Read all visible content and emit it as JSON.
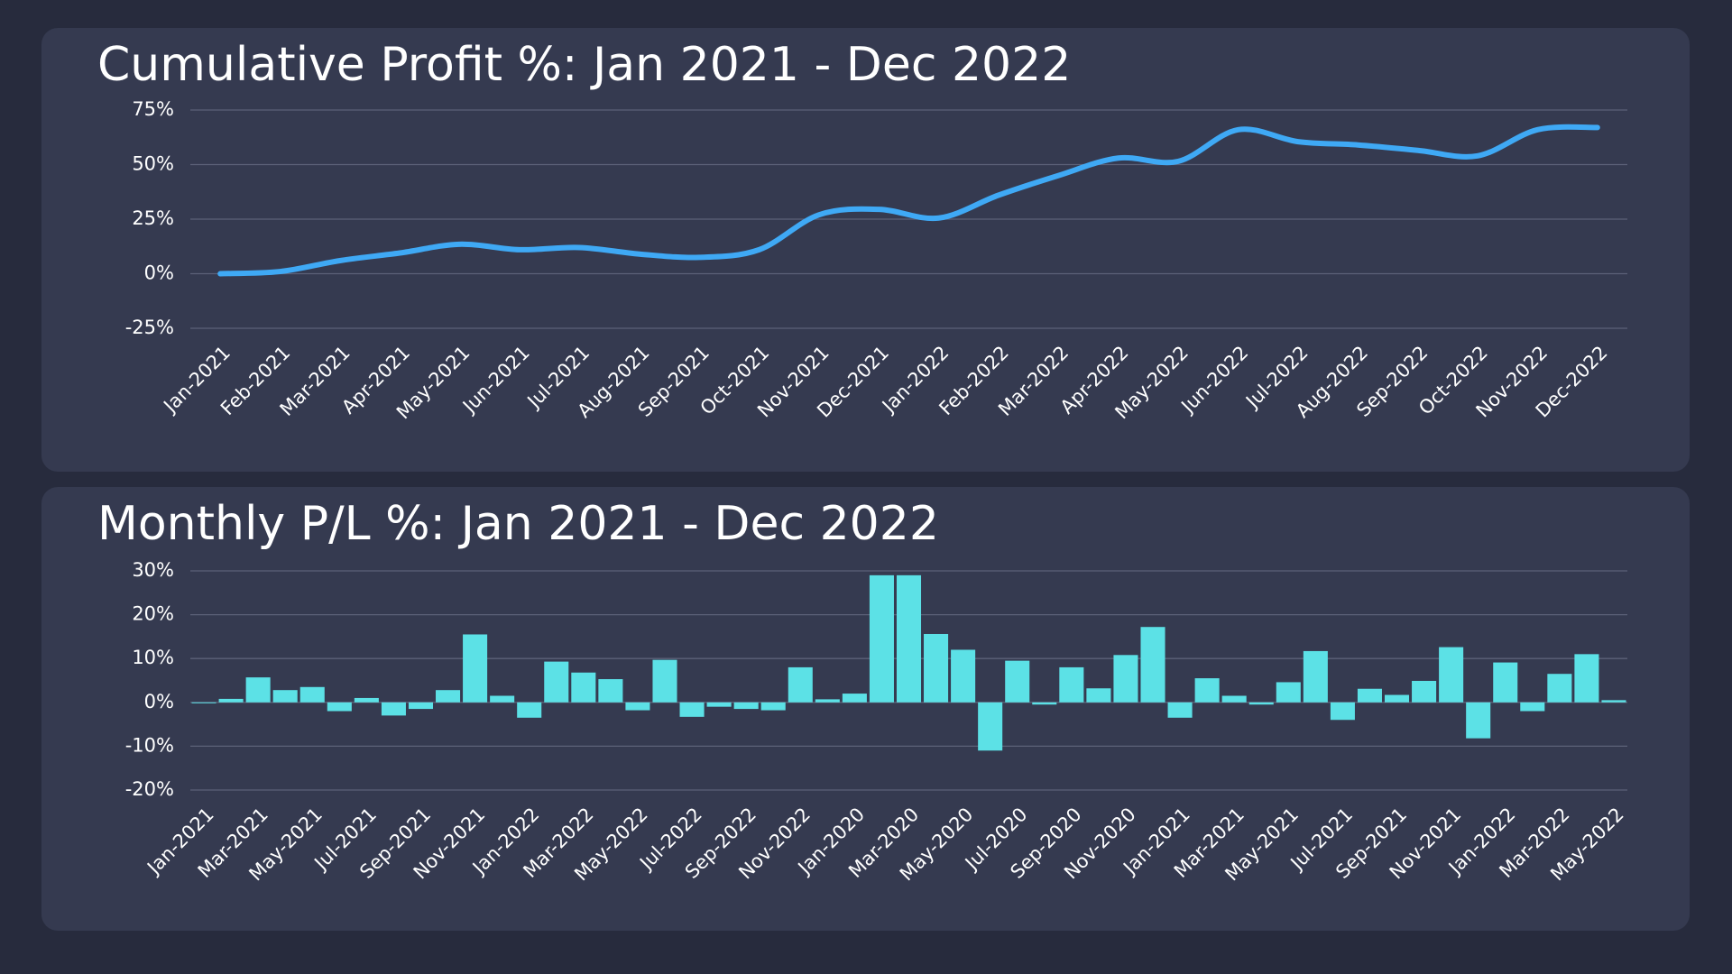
{
  "chart_data": [
    {
      "type": "line",
      "title": "Cumulative Profit %: Jan 2021 - Dec 2022",
      "categories": [
        "Jan-2021",
        "Feb-2021",
        "Mar-2021",
        "Apr-2021",
        "May-2021",
        "Jun-2021",
        "Jul-2021",
        "Aug-2021",
        "Sep-2021",
        "Oct-2021",
        "Nov-2021",
        "Dec-2021",
        "Jan-2022",
        "Feb-2022",
        "Mar-2022",
        "Apr-2022",
        "May-2022",
        "Jun-2022",
        "Jul-2022",
        "Aug-2022",
        "Sep-2022",
        "Oct-2022",
        "Nov-2022",
        "Dec-2022"
      ],
      "values": [
        0,
        1,
        6,
        9.5,
        13.5,
        11,
        12,
        9,
        7.5,
        11,
        27,
        29.5,
        25.5,
        36,
        45,
        53,
        51.5,
        66,
        60.5,
        59,
        56.5,
        54,
        66,
        67
      ],
      "color": "#3fa9f5",
      "ylim": [
        -25,
        75
      ],
      "yticks": [
        {
          "value": -25,
          "label": "-25%"
        },
        {
          "value": 0,
          "label": "0%"
        },
        {
          "value": 25,
          "label": "25%"
        },
        {
          "value": 50,
          "label": "50%"
        },
        {
          "value": 75,
          "label": "75%"
        }
      ],
      "grid": true
    },
    {
      "type": "bar",
      "title": "Monthly P/L %: Jan 2021 - Dec 2022",
      "categories": [
        "Jan-2021",
        null,
        "Mar-2021",
        null,
        "May-2021",
        null,
        "Jul-2021",
        null,
        "Sep-2021",
        null,
        "Nov-2021",
        null,
        "Jan-2022",
        null,
        "Mar-2022",
        null,
        "May-2022",
        null,
        "Jul-2022",
        null,
        "Sep-2022",
        null,
        "Nov-2022",
        null,
        "Jan-2020",
        null,
        "Mar-2020",
        null,
        "May-2020",
        null,
        "Jul-2020",
        null,
        "Sep-2020",
        null,
        "Nov-2020",
        null,
        "Jan-2021",
        null,
        "Mar-2021",
        null,
        "May-2021",
        null,
        "Jul-2021",
        null,
        "Sep-2021",
        null,
        "Nov-2021",
        null,
        "Jan-2022",
        null,
        "Mar-2022",
        null,
        "May-2022"
      ],
      "values": [
        -0.2,
        0.8,
        5.7,
        2.8,
        3.5,
        -2,
        1,
        -3,
        -1.5,
        2.8,
        15.5,
        1.5,
        -3.5,
        9.3,
        6.8,
        5.3,
        -1.8,
        9.7,
        -3.3,
        -1,
        -1.5,
        -1.8,
        8,
        0.7,
        2,
        29,
        29,
        15.6,
        12,
        -11,
        9.5,
        -0.5,
        8,
        3.2,
        10.8,
        17.2,
        -3.5,
        5.5,
        1.5,
        -0.5,
        4.6,
        11.7,
        -4,
        3.1,
        1.7,
        4.9,
        12.6,
        -8.2,
        9.1,
        -2,
        6.5,
        11,
        0.5
      ],
      "color": "#5ce1e6",
      "ylim": [
        -20,
        30
      ],
      "yticks": [
        {
          "value": -20,
          "label": "-20%"
        },
        {
          "value": -10,
          "label": "-10%"
        },
        {
          "value": 0,
          "label": "0%"
        },
        {
          "value": 10,
          "label": "10%"
        },
        {
          "value": 20,
          "label": "20%"
        },
        {
          "value": 30,
          "label": "30%"
        }
      ],
      "grid": true
    }
  ]
}
